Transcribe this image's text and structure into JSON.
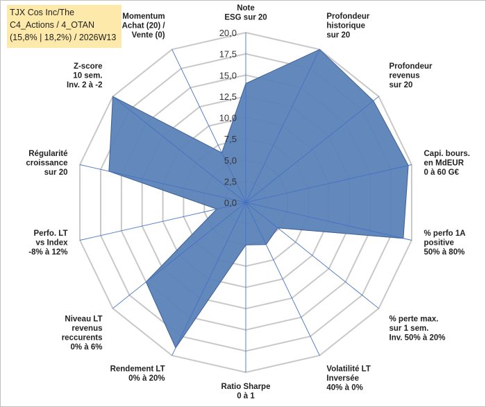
{
  "title_box": {
    "line1": "TJX Cos Inc/The",
    "line2": "C4_Actions / 4_OTAN",
    "line3": "(15,8% | 18,2%) / 2026W13"
  },
  "chart_data": {
    "type": "radar",
    "title": "TJX Cos Inc/The",
    "rmin": 0,
    "rmax": 20,
    "ticks": [
      "0,0",
      "2,5",
      "5,0",
      "7,5",
      "10,0",
      "12,5",
      "15,0",
      "17,5",
      "20,0"
    ],
    "grid": true,
    "categories": [
      {
        "label": [
          "Note",
          "ESG sur 20"
        ],
        "value": 14.0
      },
      {
        "label": [
          "Profondeur",
          "historique",
          "sur 20"
        ],
        "value": 20.0
      },
      {
        "label": [
          "Profondeur",
          "revenus",
          "sur 20"
        ],
        "value": 19.2
      },
      {
        "label": [
          "Capi. bours.",
          "en MdEUR",
          "0 à 60 G€"
        ],
        "value": 19.6
      },
      {
        "label": [
          "% perfo 1A",
          "positive",
          "50% à 80%"
        ],
        "value": 19.0
      },
      {
        "label": [
          "% perte max.",
          "sur 1 sem.",
          "Inv. 50% à 20%"
        ],
        "value": 4.8
      },
      {
        "label": [
          "Volatilité LT",
          "Inversée",
          "40% à 0%"
        ],
        "value": 5.5
      },
      {
        "label": [
          "Ratio Sharpe",
          "0 à 1"
        ],
        "value": 5.0
      },
      {
        "label": [
          "Rendement LT",
          "0% à 20%"
        ],
        "value": 19.0
      },
      {
        "label": [
          "Niveau LT",
          "revenus",
          "reccurents",
          "0% à 6%"
        ],
        "value": 15.0
      },
      {
        "label": [
          "Perfo. LT",
          "vs Index",
          "-8% à 12%"
        ],
        "value": 3.5
      },
      {
        "label": [
          "Régularité",
          "croissance",
          "sur 20"
        ],
        "value": 16.5
      },
      {
        "label": [
          "Z-score",
          "10 sem.",
          "Inv. 2 à -2"
        ],
        "value": 20.0
      },
      {
        "label": [
          "Momentum",
          "Achat (20) /",
          "Vente (0)"
        ],
        "value": 6.5
      }
    ],
    "series": [
      {
        "name": "TJX Cos Inc/The",
        "color": "#5b82b8"
      }
    ],
    "colors": {
      "fill": "#5b82b8",
      "stroke": "#3d5f94",
      "grid": "#c8c8c8",
      "spoke": "#4472c4"
    }
  }
}
